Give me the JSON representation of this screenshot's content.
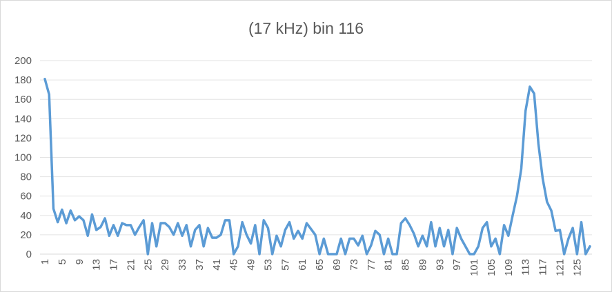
{
  "chart_data": {
    "type": "line",
    "title": "(17 kHz) bin 116",
    "xlabel": "",
    "ylabel": "",
    "ylim": [
      0,
      200
    ],
    "yticks": [
      0,
      20,
      40,
      60,
      80,
      100,
      120,
      140,
      160,
      180,
      200
    ],
    "xlim": [
      1,
      128
    ],
    "xticks": [
      1,
      5,
      9,
      13,
      17,
      21,
      25,
      29,
      33,
      37,
      41,
      45,
      49,
      53,
      57,
      61,
      65,
      69,
      73,
      77,
      81,
      85,
      89,
      93,
      97,
      101,
      105,
      109,
      113,
      117,
      121,
      125
    ],
    "grid": true,
    "legend": "none",
    "line_color": "#5b9bd5",
    "series": [
      {
        "x": [
          1,
          2,
          3,
          4,
          5,
          6,
          7,
          8,
          9,
          10,
          11,
          12,
          13,
          14,
          15,
          16,
          17,
          18,
          19,
          20,
          21,
          22,
          23,
          24,
          25,
          26,
          27,
          28,
          29,
          30,
          31,
          32,
          33,
          34,
          35,
          36,
          37,
          38,
          39,
          40,
          41,
          42,
          43,
          44,
          45,
          46,
          47,
          48,
          49,
          50,
          51,
          52,
          53,
          54,
          55,
          56,
          57,
          58,
          59,
          60,
          61,
          62,
          63,
          64,
          65,
          66,
          67,
          68,
          69,
          70,
          71,
          72,
          73,
          74,
          75,
          76,
          77,
          78,
          79,
          80,
          81,
          82,
          83,
          84,
          85,
          86,
          87,
          88,
          89,
          90,
          91,
          92,
          93,
          94,
          95,
          96,
          97,
          98,
          99,
          100,
          101,
          102,
          103,
          104,
          105,
          106,
          107,
          108,
          109,
          110,
          111,
          112,
          113,
          114,
          115,
          116,
          117,
          118,
          119,
          120,
          121,
          122,
          123,
          124,
          125,
          126,
          127,
          128
        ],
        "values": [
          181,
          165,
          47,
          33,
          46,
          32,
          45,
          35,
          39,
          35,
          19,
          41,
          25,
          28,
          37,
          19,
          30,
          19,
          32,
          30,
          30,
          20,
          28,
          35,
          0,
          32,
          8,
          32,
          32,
          28,
          20,
          32,
          19,
          30,
          8,
          25,
          30,
          8,
          27,
          17,
          17,
          20,
          35,
          35,
          0,
          8,
          33,
          20,
          11,
          30,
          0,
          35,
          27,
          0,
          19,
          8,
          25,
          33,
          16,
          24,
          16,
          32,
          26,
          20,
          0,
          16,
          0,
          0,
          0,
          16,
          0,
          16,
          16,
          9,
          19,
          0,
          9,
          24,
          20,
          0,
          16,
          0,
          0,
          32,
          37,
          30,
          21,
          8,
          19,
          8,
          33,
          8,
          27,
          8,
          25,
          0,
          27,
          16,
          8,
          0,
          0,
          8,
          27,
          33,
          8,
          16,
          0,
          30,
          19,
          40,
          60,
          88,
          148,
          173,
          166,
          114,
          78,
          54,
          45,
          24,
          25,
          0,
          16,
          27,
          0,
          33,
          0,
          8
        ]
      }
    ]
  }
}
